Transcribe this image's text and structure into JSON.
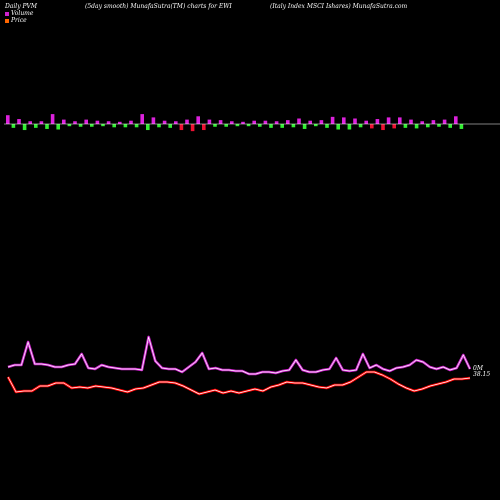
{
  "header": {
    "left": "Daily PVM",
    "middle": "(5day smooth) MunafaSutra(TM) charts for EWI",
    "right": "(Italy Index MSCI Ishares) MunafaSutra.com"
  },
  "legend": {
    "volume_label": "Volume",
    "price_label": "Price",
    "volume_color": "#cc22cc",
    "price_color": "#ff6600"
  },
  "labels": {
    "volume_last": "0M",
    "price_last": "38.15"
  },
  "colors": {
    "background": "#000000",
    "up_bar": "#dd22dd",
    "down_bar": "#33ee33",
    "red_bar": "#ee1133",
    "volume_line_outer": "#cc22cc",
    "volume_line_inner": "#ffffff",
    "price_line_outer": "#ff0000",
    "price_line_inner": "#ffffff",
    "zero_line": "#ffffff"
  },
  "chart_data": {
    "type": "bar",
    "title": "(5day smooth) MunafaSutra(TM) charts for EWI",
    "bars": {
      "values": [
        16,
        -7,
        9,
        -11,
        5,
        -7,
        5,
        -9,
        18,
        -10,
        8,
        -4,
        5,
        -5,
        8,
        -5,
        6,
        -4,
        5,
        -6,
        4,
        -6,
        6,
        -6,
        18,
        -11,
        12,
        -6,
        6,
        -7,
        5,
        -11,
        8,
        -13,
        14,
        -11,
        8,
        -5,
        7,
        -5,
        5,
        -4,
        4,
        -4,
        6,
        -5,
        6,
        -7,
        5,
        -7,
        7,
        -6,
        10,
        -9,
        6,
        -4,
        7,
        -7,
        13,
        -10,
        12,
        -10,
        10,
        -6,
        6,
        -8,
        9,
        -11,
        12,
        -8,
        12,
        -7,
        8,
        -8,
        5,
        -6,
        7,
        -5,
        8,
        -7,
        14,
        -9
      ],
      "kinds": [
        "u",
        "d",
        "u",
        "d",
        "u",
        "d",
        "u",
        "d",
        "u",
        "d",
        "u",
        "d",
        "u",
        "d",
        "u",
        "d",
        "u",
        "d",
        "u",
        "d",
        "u",
        "d",
        "u",
        "d",
        "u",
        "d",
        "u",
        "d",
        "u",
        "d",
        "u",
        "r",
        "u",
        "r",
        "u",
        "r",
        "u",
        "d",
        "u",
        "d",
        "u",
        "d",
        "u",
        "d",
        "u",
        "d",
        "u",
        "d",
        "u",
        "d",
        "u",
        "d",
        "u",
        "d",
        "u",
        "d",
        "u",
        "d",
        "u",
        "d",
        "u",
        "d",
        "u",
        "d",
        "u",
        "r",
        "u",
        "r",
        "u",
        "r",
        "u",
        "d",
        "u",
        "d",
        "u",
        "d",
        "u",
        "d",
        "u",
        "d",
        "u",
        "d"
      ]
    },
    "volume_series": [
      5,
      7,
      7,
      30,
      8,
      8,
      7,
      5,
      5,
      7,
      8,
      18,
      4,
      3,
      7,
      5,
      4,
      3,
      3,
      3,
      2,
      35,
      11,
      4,
      3,
      3,
      0,
      5,
      10,
      19,
      3,
      4,
      2,
      2,
      1,
      1,
      -2,
      -2,
      0,
      0,
      -1,
      1,
      2,
      12,
      2,
      0,
      0,
      2,
      3,
      14,
      2,
      1,
      2,
      18,
      4,
      7,
      3,
      1,
      4,
      5,
      7,
      12,
      10,
      5,
      3,
      5,
      2,
      4,
      17,
      3
    ],
    "price_series": [
      -3,
      -18,
      -17,
      -17,
      -12,
      -12,
      -9,
      -9,
      -14,
      -13,
      -14,
      -12,
      -13,
      -14,
      -16,
      -18,
      -15,
      -14,
      -11,
      -8,
      -8,
      -9,
      -12,
      -16,
      -20,
      -18,
      -16,
      -19,
      -17,
      -19,
      -17,
      -15,
      -17,
      -13,
      -11,
      -8,
      -9,
      -9,
      -11,
      -13,
      -14,
      -11,
      -11,
      -8,
      -3,
      2,
      2,
      -1,
      -5,
      -10,
      -14,
      -17,
      -15,
      -12,
      -10,
      -8,
      -5,
      -5,
      -4
    ],
    "ylim_bars": [
      -20,
      20
    ],
    "grid": false
  }
}
